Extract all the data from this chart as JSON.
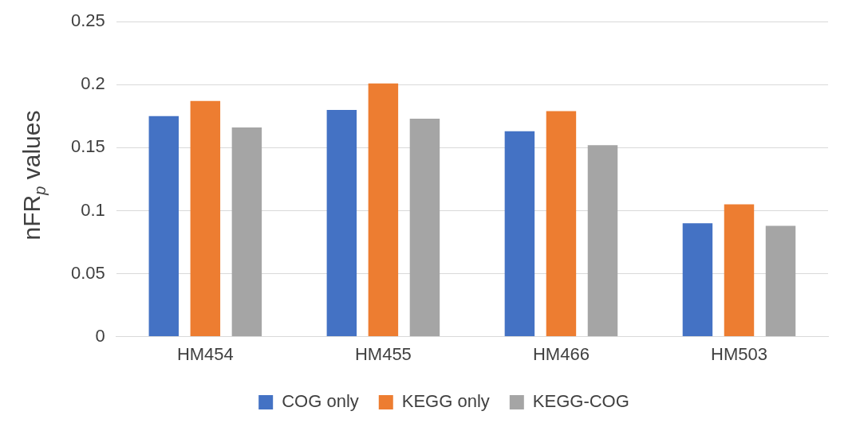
{
  "chart_data": {
    "type": "bar",
    "ylabel": "nFR$_{p}$ values",
    "categories": [
      "HM454",
      "HM455",
      "HM466",
      "HM503"
    ],
    "series": [
      {
        "name": "COG only",
        "color": "#4472c4",
        "values": [
          0.175,
          0.18,
          0.163,
          0.09
        ]
      },
      {
        "name": "KEGG only",
        "color": "#ed7d31",
        "values": [
          0.187,
          0.201,
          0.179,
          0.105
        ]
      },
      {
        "name": "KEGG-COG",
        "color": "#a5a5a5",
        "values": [
          0.166,
          0.173,
          0.152,
          0.088
        ]
      }
    ],
    "ylim": [
      0,
      0.25
    ],
    "yticks": [
      0,
      0.05,
      0.1,
      0.15,
      0.2,
      0.25
    ],
    "grid": "y",
    "legend": "bottom"
  }
}
